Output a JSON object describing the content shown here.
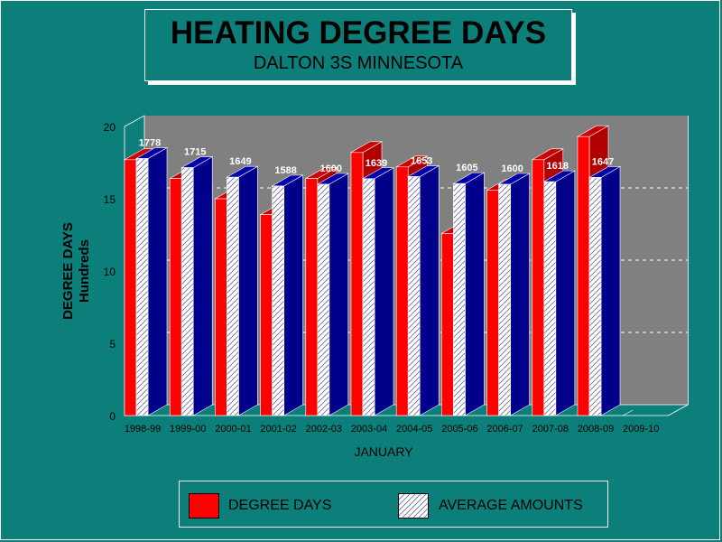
{
  "title": "HEATING DEGREE DAYS",
  "subtitle": "DALTON 3S MINNESOTA",
  "colors": {
    "background": "#0d7f7a",
    "plot_back": "#808080",
    "degree_days": "#ff0000",
    "degree_days_side": "#b00000",
    "degree_days_top": "#cc0000",
    "average_front": "#ffffff",
    "average_side": "#00008b",
    "average_top": "#0000a8"
  },
  "chart_data": {
    "type": "bar",
    "title": "HEATING DEGREE DAYS",
    "subtitle": "DALTON 3S MINNESOTA",
    "xlabel": "JANUARY",
    "ylabel": "DEGREE DAYS",
    "ylabel2": "Hundreds",
    "ylim": [
      0,
      20
    ],
    "yticks": [
      "0",
      "5",
      "10",
      "15",
      "20"
    ],
    "categories": [
      "1998-99",
      "1999-00",
      "2000-01",
      "2001-02",
      "2002-03",
      "2003-04",
      "2004-05",
      "2005-06",
      "2006-07",
      "2007-08",
      "2008-09",
      "2009-10"
    ],
    "series": [
      {
        "name": "DEGREE DAYS",
        "values": [
          17.7,
          16.4,
          15.0,
          13.9,
          16.4,
          18.2,
          17.2,
          12.6,
          15.6,
          17.7,
          19.3,
          null
        ]
      },
      {
        "name": "AVERAGE AMOUNTS",
        "values": [
          17.78,
          17.15,
          16.49,
          15.88,
          16.0,
          16.39,
          16.53,
          16.05,
          16.0,
          16.18,
          16.47,
          null
        ],
        "labels": [
          "1778",
          "1715",
          "1649",
          "1588",
          "1600",
          "1639",
          "1653",
          "1605",
          "1600",
          "1618",
          "1647",
          ""
        ]
      }
    ],
    "grid": "dashed-horizontal",
    "legend_position": "bottom"
  },
  "legend": {
    "degree_days": "DEGREE DAYS",
    "average": "AVERAGE AMOUNTS"
  }
}
